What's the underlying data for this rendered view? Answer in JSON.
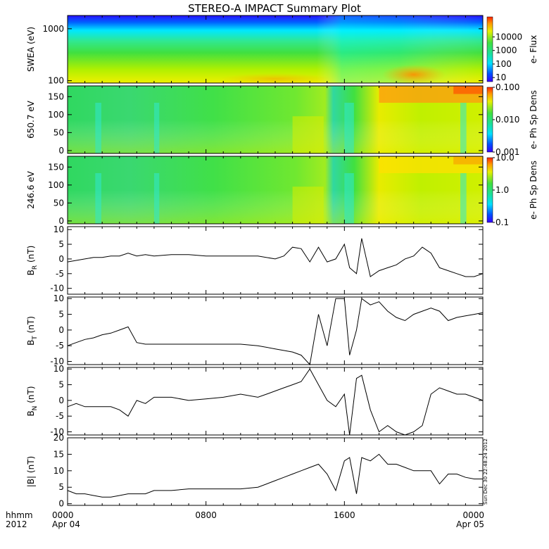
{
  "title": "STEREO-A IMPACT Summary Plot",
  "stamp": "Sun Dec 30 22:48:24 2012",
  "time_axis": {
    "row_label_1": "hhmm",
    "row_label_2": "2012",
    "ticks": [
      {
        "hours": 0,
        "label": "0000",
        "sub": "Apr 04"
      },
      {
        "hours": 8,
        "label": "0800",
        "sub": ""
      },
      {
        "hours": 16,
        "label": "1600",
        "sub": ""
      },
      {
        "hours": 24,
        "label": "0000",
        "sub": "Apr 05"
      }
    ]
  },
  "chart_data": [
    {
      "type": "heatmap",
      "ylabel": "SWEA (eV)",
      "ylog": true,
      "ylim": [
        90,
        1800
      ],
      "yticks": [
        100,
        1000
      ],
      "yticklabels": [
        "100",
        "1000"
      ],
      "colorbar": {
        "label": "e- Flux",
        "log": true,
        "range": [
          5,
          300000
        ],
        "ticks": [
          10,
          100,
          1000,
          10000
        ],
        "ticklabels": [
          "10",
          "100",
          "1000",
          "10000"
        ]
      }
    },
    {
      "type": "heatmap",
      "ylabel": "650.7 eV",
      "ylim": [
        -8,
        180
      ],
      "yticks": [
        0,
        50,
        100,
        150
      ],
      "colorbar": {
        "label": "e- Ph Sp Dens",
        "log": true,
        "range": [
          0.001,
          0.1
        ],
        "ticks": [
          0.001,
          0.01,
          0.1
        ],
        "ticklabels": [
          "0.001",
          "0.010",
          "0.100"
        ]
      }
    },
    {
      "type": "heatmap",
      "ylabel": "246.6 eV",
      "ylim": [
        -8,
        180
      ],
      "yticks": [
        0,
        50,
        100,
        150
      ],
      "colorbar": {
        "label": "e- Ph Sp Dens",
        "log": true,
        "range": [
          0.1,
          10
        ],
        "ticks": [
          0.1,
          1,
          10
        ],
        "ticklabels": [
          "0.1",
          "1.0",
          "10.0"
        ]
      }
    },
    {
      "type": "line",
      "ylabel": "B_R (nT)",
      "ylim": [
        -12,
        11
      ],
      "yticks": [
        -10,
        -5,
        0,
        5,
        10
      ],
      "x_hours": [
        0,
        0.5,
        1,
        1.5,
        2,
        2.5,
        3,
        3.5,
        4,
        4.5,
        5,
        6,
        7,
        8,
        9,
        10,
        11,
        12,
        12.5,
        13,
        13.5,
        14,
        14.5,
        15,
        15.5,
        16,
        16.3,
        16.7,
        17,
        17.5,
        18,
        18.5,
        19,
        19.5,
        20,
        20.5,
        21,
        21.5,
        22,
        22.5,
        23,
        23.5,
        24
      ],
      "values": [
        -1,
        -0.5,
        0,
        0.5,
        0.5,
        1,
        1,
        2,
        1,
        1.5,
        1,
        1.5,
        1.5,
        1,
        1,
        1,
        1,
        0,
        1,
        4,
        3.5,
        -1,
        4,
        -1,
        0,
        5,
        -3,
        -5,
        7,
        -6,
        -4,
        -3,
        -2,
        0,
        1,
        4,
        2,
        -3,
        -4,
        -5,
        -6,
        -6,
        -5
      ]
    },
    {
      "type": "line",
      "ylabel": "B_T (nT)",
      "ylim": [
        -11,
        10.5
      ],
      "yticks": [
        -10,
        -5,
        0,
        5,
        10
      ],
      "x_hours": [
        0,
        0.5,
        1,
        1.5,
        2,
        2.5,
        3,
        3.5,
        4,
        4.5,
        5,
        6,
        7,
        8,
        9,
        10,
        11,
        12,
        13,
        13.5,
        14,
        14.5,
        15,
        15.5,
        16,
        16.3,
        16.7,
        17,
        17.5,
        18,
        18.5,
        19,
        19.5,
        20,
        20.5,
        21,
        21.5,
        22,
        22.5,
        23,
        23.5,
        24
      ],
      "values": [
        -5,
        -4,
        -3,
        -2.5,
        -1.5,
        -1,
        0,
        1,
        -4,
        -4.5,
        -4.5,
        -4.5,
        -4.5,
        -4.5,
        -4.5,
        -4.5,
        -5,
        -6,
        -7,
        -8,
        -11,
        5,
        -5,
        10,
        10,
        -8,
        0,
        10,
        8,
        9,
        6,
        4,
        3,
        5,
        6,
        7,
        6,
        3,
        4,
        4.5,
        5,
        5.5
      ]
    },
    {
      "type": "line",
      "ylabel": "B_N (nT)",
      "ylim": [
        -11,
        10.5
      ],
      "yticks": [
        -10,
        -5,
        0,
        5,
        10
      ],
      "x_hours": [
        0,
        0.5,
        1,
        1.5,
        2,
        2.5,
        3,
        3.5,
        4,
        4.5,
        5,
        6,
        7,
        8,
        9,
        10,
        11,
        11.5,
        12,
        12.5,
        13,
        13.5,
        14,
        14.5,
        15,
        15.5,
        16,
        16.3,
        16.7,
        17,
        17.5,
        18,
        18.5,
        19,
        19.5,
        20,
        20.5,
        21,
        21.5,
        22,
        22.5,
        23,
        23.5,
        24
      ],
      "values": [
        -2,
        -1,
        -2,
        -2,
        -2,
        -2,
        -3,
        -5,
        0,
        -1,
        1,
        1,
        0,
        0.5,
        1,
        2,
        1,
        2,
        3,
        4,
        5,
        6,
        10,
        5,
        0,
        -2,
        2,
        -11,
        7,
        8,
        -3,
        -10,
        -8,
        -10,
        -11,
        -10,
        -8,
        2,
        4,
        3,
        2,
        2,
        1,
        0
      ]
    },
    {
      "type": "line",
      "ylabel": "|B| (nT)",
      "ylim": [
        -0.5,
        20
      ],
      "yticks": [
        0,
        5,
        10,
        15,
        20
      ],
      "x_hours": [
        0,
        0.5,
        1,
        1.5,
        2,
        2.5,
        3,
        3.5,
        4,
        4.5,
        5,
        6,
        7,
        8,
        9,
        10,
        11,
        11.5,
        12,
        12.5,
        13,
        13.5,
        14,
        14.5,
        15,
        15.5,
        16,
        16.3,
        16.7,
        17,
        17.5,
        18,
        18.5,
        19,
        19.5,
        20,
        20.5,
        21,
        21.5,
        22,
        22.5,
        23,
        23.5,
        24
      ],
      "values": [
        4,
        3,
        3,
        2.5,
        2,
        2,
        2.5,
        3,
        3,
        3,
        4,
        4,
        4.5,
        4.5,
        4.5,
        4.5,
        5,
        6,
        7,
        8,
        9,
        10,
        11,
        12,
        9,
        4,
        13,
        14,
        3,
        14,
        13,
        15,
        12,
        12,
        11,
        10,
        10,
        10,
        6,
        9,
        9,
        8,
        7.5,
        7.5
      ]
    }
  ]
}
